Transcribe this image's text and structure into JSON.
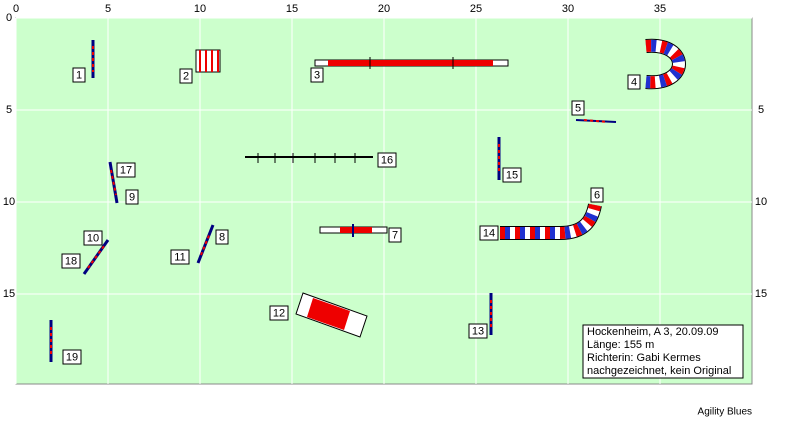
{
  "axes": {
    "top": [
      0,
      5,
      10,
      15,
      20,
      25,
      30,
      35
    ],
    "left": [
      0,
      5,
      10,
      15
    ],
    "right": [
      5,
      10,
      15
    ]
  },
  "obstacles": [
    "1",
    "2",
    "3",
    "4",
    "5",
    "6",
    "7",
    "8",
    "9",
    "10",
    "11",
    "12",
    "13",
    "14",
    "15",
    "16",
    "17",
    "18",
    "19"
  ],
  "info": [
    "Hockenheim, A 3, 20.09.09",
    "Länge: 155 m",
    "Richterin: Gabi Kermes",
    "nachgezeichnet, kein Original"
  ],
  "footer": "Agility Blues"
}
